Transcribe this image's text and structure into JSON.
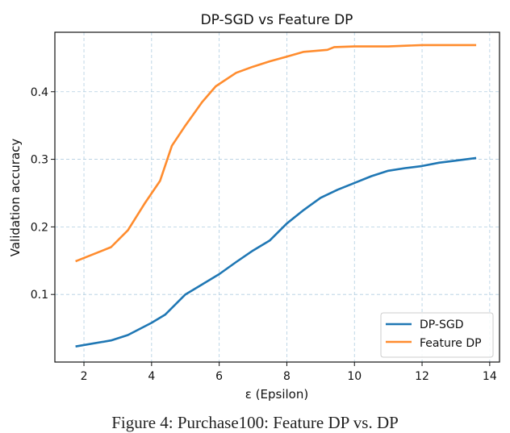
{
  "chart_data": {
    "type": "line",
    "title": "DP-SGD vs Feature DP",
    "xlabel": "ε (Epsilon)",
    "ylabel": "Validation accuracy",
    "xlim": [
      1.14,
      14.29
    ],
    "ylim": [
      0.0,
      0.488
    ],
    "xticks": [
      2,
      4,
      6,
      8,
      10,
      12,
      14
    ],
    "xtick_labels": [
      "2",
      "4",
      "6",
      "8",
      "10",
      "12",
      "14"
    ],
    "yticks": [
      0.1,
      0.2,
      0.3,
      0.4
    ],
    "ytick_labels": [
      "0.1",
      "0.2",
      "0.3",
      "0.4"
    ],
    "grid": true,
    "legend_position": "bottom-right",
    "series": [
      {
        "name": "DP-SGD",
        "color": "#1f77b4",
        "x": [
          1.75,
          2.8,
          3.3,
          4.0,
          4.4,
          5.0,
          5.5,
          6.0,
          6.5,
          7.0,
          7.5,
          8.0,
          8.5,
          9.0,
          9.5,
          10.0,
          10.5,
          11.0,
          11.5,
          12.0,
          12.5,
          13.0,
          13.6
        ],
        "y": [
          0.023,
          0.032,
          0.04,
          0.058,
          0.07,
          0.1,
          0.115,
          0.13,
          0.148,
          0.165,
          0.18,
          0.205,
          0.225,
          0.243,
          0.255,
          0.265,
          0.275,
          0.283,
          0.287,
          0.29,
          0.295,
          0.298,
          0.302
        ]
      },
      {
        "name": "Feature DP",
        "color": "#ff8c2e",
        "x": [
          1.75,
          2.8,
          3.3,
          3.8,
          4.25,
          4.6,
          5.0,
          5.5,
          5.9,
          6.5,
          7.0,
          7.5,
          8.0,
          8.5,
          9.2,
          9.4,
          10.0,
          11.0,
          12.0,
          13.6
        ],
        "y": [
          0.149,
          0.17,
          0.195,
          0.235,
          0.268,
          0.32,
          0.35,
          0.385,
          0.408,
          0.428,
          0.437,
          0.445,
          0.452,
          0.459,
          0.462,
          0.466,
          0.467,
          0.467,
          0.469,
          0.469
        ]
      }
    ]
  },
  "caption": "Figure 4: Purchase100: Feature DP vs. DP"
}
